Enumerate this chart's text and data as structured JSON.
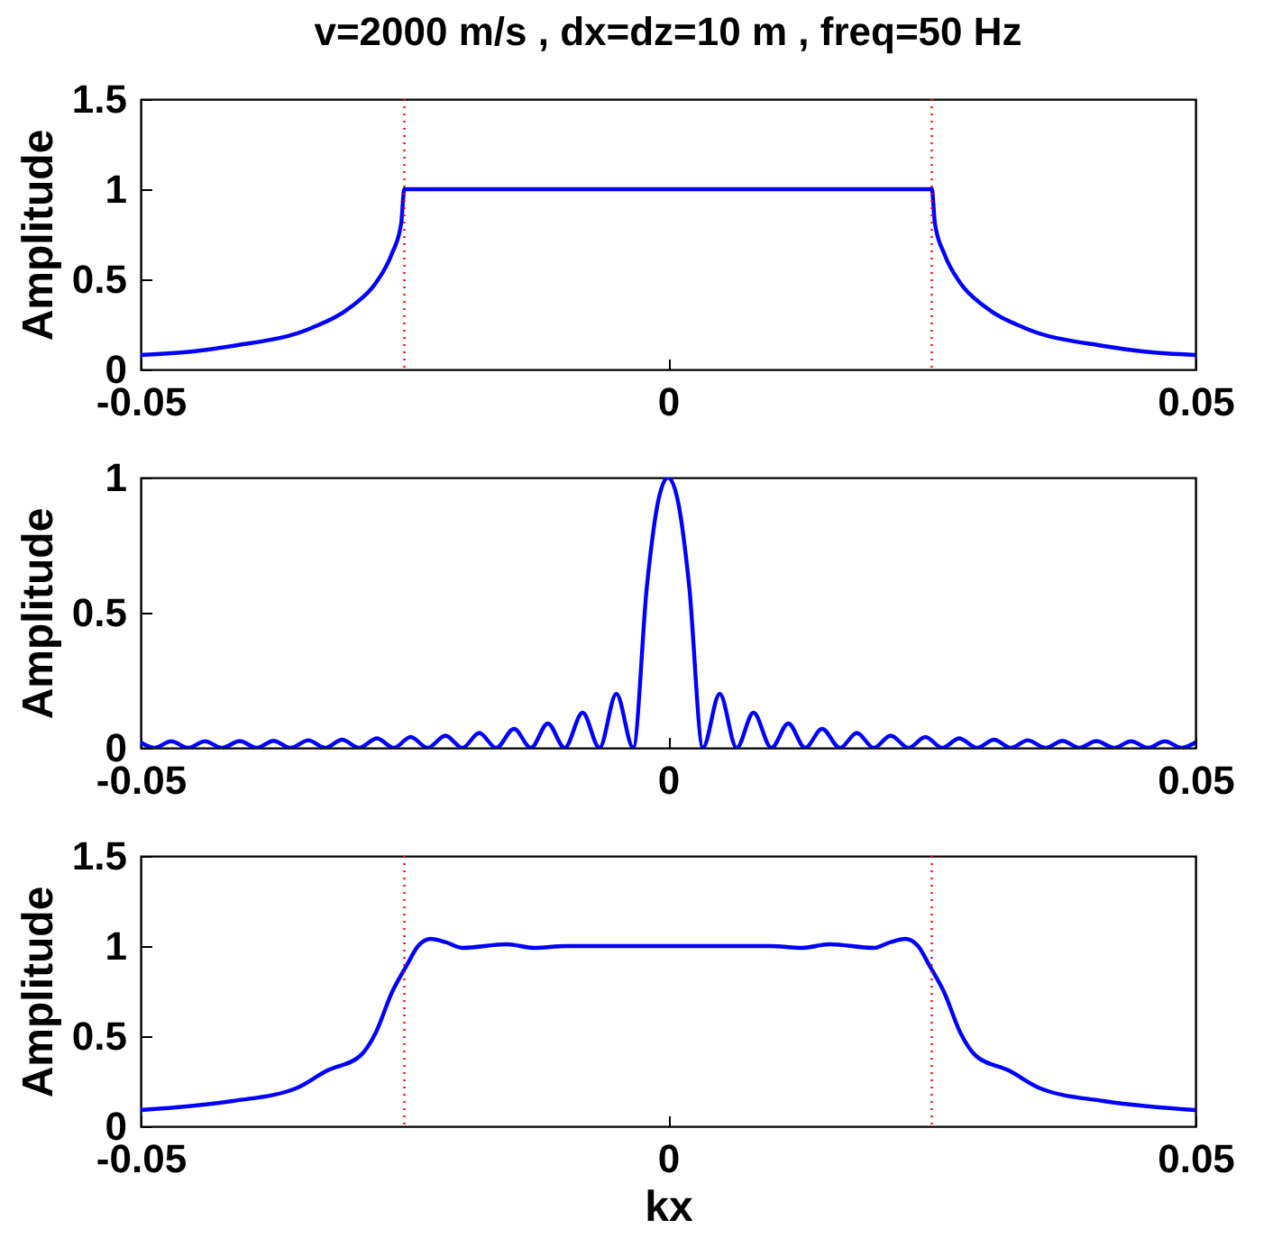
{
  "chart_data": [
    {
      "type": "line",
      "title": "v=2000 m/s , dx=dz=10 m , freq=50 Hz",
      "ylabel": "Amplitude",
      "xlim": [
        -0.05,
        0.05
      ],
      "xticks": [
        -0.05,
        0,
        0.05
      ],
      "ylim": [
        0,
        1.5
      ],
      "yticks": [
        0,
        0.5,
        1,
        1.5
      ],
      "grid": false,
      "x": [
        -0.05,
        -0.045,
        -0.0413,
        -0.0338,
        -0.03,
        -0.0277,
        -0.0262,
        -0.0253,
        -0.025,
        0.025,
        0.0253,
        0.0262,
        0.0277,
        0.03,
        0.0338,
        0.0413,
        0.045,
        0.05
      ],
      "series": [
        {
          "color": "#0000ff",
          "values": [
            0.08,
            0.1,
            0.13,
            0.23,
            0.35,
            0.48,
            0.64,
            0.81,
            1,
            1,
            0.81,
            0.64,
            0.48,
            0.35,
            0.23,
            0.13,
            0.1,
            0.08
          ]
        }
      ],
      "ref_lines": [
        {
          "axis": "x",
          "value": -0.025,
          "color": "#ff0000",
          "line_style": "dotted"
        },
        {
          "axis": "x",
          "value": 0.025,
          "color": "#ff0000",
          "line_style": "dotted"
        }
      ]
    },
    {
      "type": "line",
      "ylabel": "Amplitude",
      "xlim": [
        -0.05,
        0.05
      ],
      "xticks": [
        -0.05,
        0,
        0.05
      ],
      "ylim": [
        0,
        1
      ],
      "yticks": [
        0,
        0.5,
        1
      ],
      "grid": false,
      "x": [
        -0.05,
        -0.0487,
        -0.0471,
        -0.0455,
        -0.0439,
        -0.0423,
        -0.0406,
        -0.039,
        -0.0374,
        -0.0358,
        -0.0341,
        -0.0325,
        -0.0309,
        -0.0293,
        -0.0276,
        -0.026,
        -0.0244,
        -0.0228,
        -0.0211,
        -0.0195,
        -0.0179,
        -0.0163,
        -0.0146,
        -0.013,
        -0.0114,
        -0.0098,
        -0.0081,
        -0.0065,
        -0.0049,
        -0.0033,
        -0.002,
        -0.001,
        0,
        0.001,
        0.002,
        0.0033,
        0.0049,
        0.0065,
        0.0081,
        0.0098,
        0.0114,
        0.013,
        0.0146,
        0.0163,
        0.0179,
        0.0195,
        0.0211,
        0.0228,
        0.0244,
        0.026,
        0.0276,
        0.0293,
        0.0309,
        0.0325,
        0.0341,
        0.0358,
        0.0374,
        0.039,
        0.0406,
        0.0423,
        0.0439,
        0.0455,
        0.0471,
        0.0487,
        0.05
      ],
      "series": [
        {
          "color": "#0000ff",
          "values": [
            0.02,
            0,
            0.024,
            0,
            0.024,
            0,
            0.025,
            0,
            0.026,
            0,
            0.028,
            0,
            0.03,
            0,
            0.035,
            0,
            0.04,
            0,
            0.045,
            0,
            0.055,
            0,
            0.07,
            0,
            0.09,
            0,
            0.13,
            0,
            0.2,
            0,
            0.6,
            0.9,
            1,
            0.9,
            0.6,
            0,
            0.2,
            0,
            0.13,
            0,
            0.09,
            0,
            0.07,
            0,
            0.055,
            0,
            0.045,
            0,
            0.04,
            0,
            0.035,
            0,
            0.03,
            0,
            0.028,
            0,
            0.026,
            0,
            0.025,
            0,
            0.024,
            0,
            0.024,
            0,
            0.02
          ]
        }
      ]
    },
    {
      "type": "line",
      "xlabel": "kx",
      "ylabel": "Amplitude",
      "xlim": [
        -0.05,
        0.05
      ],
      "xticks": [
        -0.05,
        0,
        0.05
      ],
      "ylim": [
        0,
        1.5
      ],
      "yticks": [
        0,
        0.5,
        1,
        1.5
      ],
      "grid": false,
      "x": [
        -0.05,
        -0.0413,
        -0.0353,
        -0.0323,
        -0.0292,
        -0.0277,
        -0.0262,
        -0.0248,
        -0.0237,
        -0.0225,
        -0.021,
        -0.0195,
        -0.0153,
        -0.0127,
        -0.0097,
        0,
        0.0097,
        0.0127,
        0.0153,
        0.0195,
        0.021,
        0.0225,
        0.0237,
        0.0248,
        0.0262,
        0.0277,
        0.0292,
        0.0323,
        0.0353,
        0.0413,
        0.05
      ],
      "series": [
        {
          "color": "#0000ff",
          "values": [
            0.09,
            0.14,
            0.21,
            0.31,
            0.39,
            0.52,
            0.74,
            0.89,
            1,
            1.04,
            1.02,
            0.99,
            1.01,
            0.99,
            1,
            1,
            1,
            0.99,
            1.01,
            0.99,
            1.02,
            1.04,
            1,
            0.89,
            0.74,
            0.52,
            0.39,
            0.31,
            0.21,
            0.14,
            0.09
          ]
        }
      ],
      "ref_lines": [
        {
          "axis": "x",
          "value": -0.025,
          "color": "#ff0000",
          "line_style": "dotted"
        },
        {
          "axis": "x",
          "value": 0.025,
          "color": "#ff0000",
          "line_style": "dotted"
        }
      ]
    }
  ]
}
